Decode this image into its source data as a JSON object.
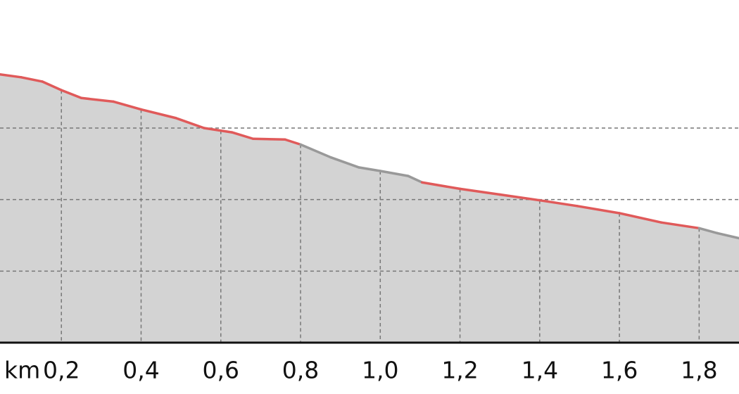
{
  "chart_data": {
    "type": "area",
    "x_label": "km",
    "x": [
      0.046,
      0.099,
      0.152,
      0.2,
      0.25,
      0.33,
      0.4,
      0.487,
      0.558,
      0.628,
      0.681,
      0.761,
      0.8,
      0.876,
      0.946,
      1.0,
      1.07,
      1.105,
      1.2,
      1.3,
      1.4,
      1.494,
      1.6,
      1.705,
      1.8,
      1.846,
      1.9
    ],
    "values": [
      3.75,
      3.71,
      3.65,
      3.53,
      3.42,
      3.37,
      3.26,
      3.14,
      3.0,
      2.94,
      2.85,
      2.84,
      2.77,
      2.59,
      2.45,
      2.4,
      2.33,
      2.24,
      2.15,
      2.07,
      1.99,
      1.91,
      1.81,
      1.68,
      1.6,
      1.53,
      1.46
    ],
    "line_colors": [
      "#e05a5a",
      "#e05a5a",
      "#e05a5a",
      "#e05a5a",
      "#e05a5a",
      "#e05a5a",
      "#e05a5a",
      "#e05a5a",
      "#e05a5a",
      "#e05a5a",
      "#e05a5a",
      "#e05a5a",
      "#999999",
      "#999999",
      "#999999",
      "#999999",
      "#999999",
      "#e05a5a",
      "#e05a5a",
      "#e05a5a",
      "#e05a5a",
      "#e05a5a",
      "#e05a5a",
      "#e05a5a",
      "#999999",
      "#999999"
    ],
    "fill_color": "#d3d3d3",
    "xlim": [
      0.046,
      1.9
    ],
    "ylim": [
      0,
      4.79
    ],
    "xticks": [
      {
        "value": 0.2,
        "label": "0,2"
      },
      {
        "value": 0.4,
        "label": "0,4"
      },
      {
        "value": 0.6,
        "label": "0,6"
      },
      {
        "value": 0.8,
        "label": "0,8"
      },
      {
        "value": 1.0,
        "label": "1,0"
      },
      {
        "value": 1.2,
        "label": "1,2"
      },
      {
        "value": 1.4,
        "label": "1,4"
      },
      {
        "value": 1.6,
        "label": "1,6"
      },
      {
        "value": 1.8,
        "label": "1,8"
      }
    ],
    "yticks": [
      1,
      2,
      3
    ],
    "grid": true
  }
}
